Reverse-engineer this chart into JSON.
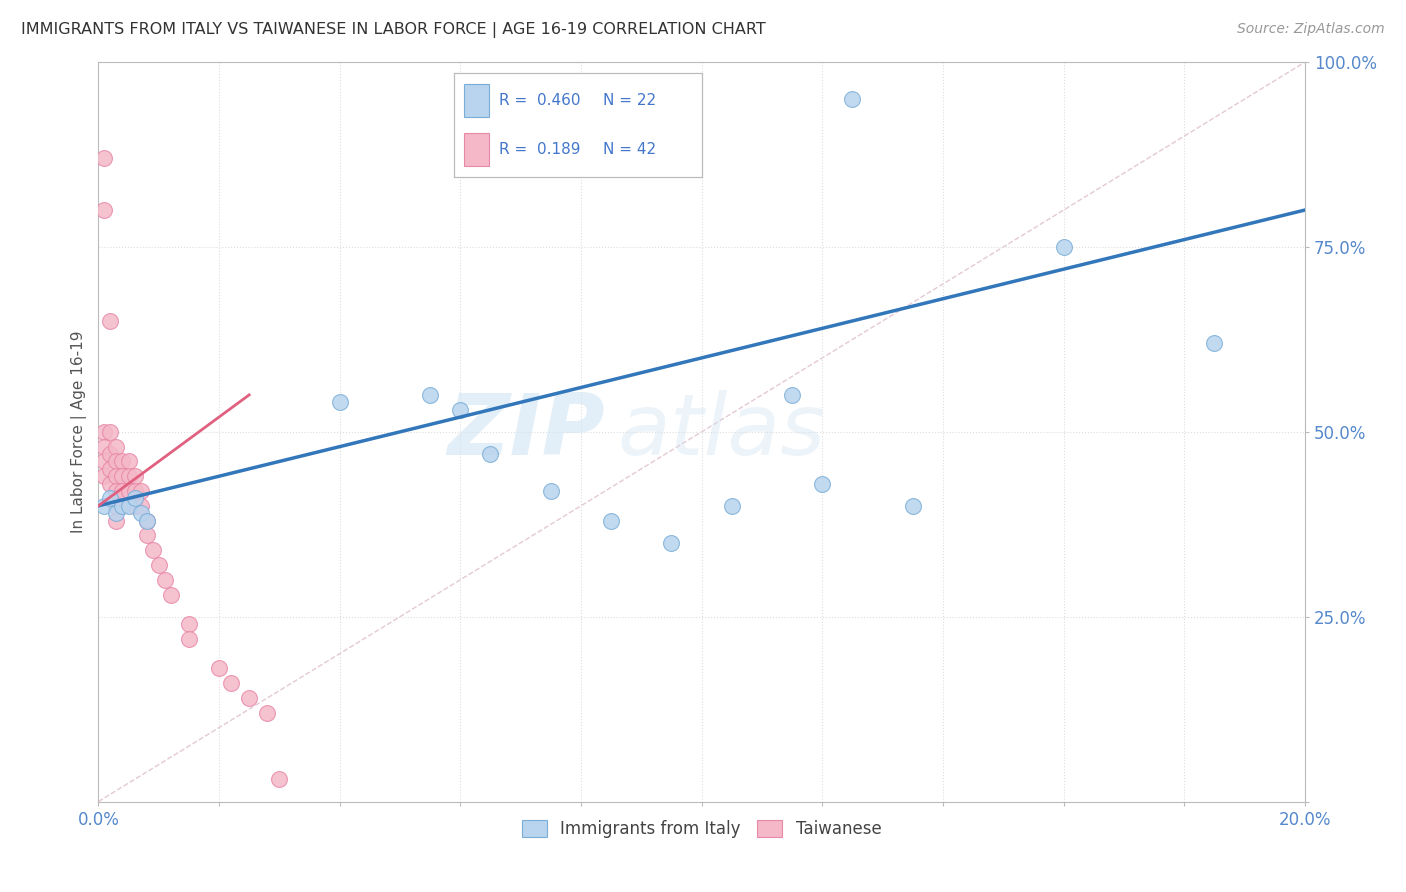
{
  "title": "IMMIGRANTS FROM ITALY VS TAIWANESE IN LABOR FORCE | AGE 16-19 CORRELATION CHART",
  "source": "Source: ZipAtlas.com",
  "ylabel_label": "In Labor Force | Age 16-19",
  "xlim": [
    0.0,
    0.2
  ],
  "ylim": [
    0.0,
    1.0
  ],
  "xticks": [
    0.0,
    0.02,
    0.04,
    0.06,
    0.08,
    0.1,
    0.12,
    0.14,
    0.16,
    0.18,
    0.2
  ],
  "yticks": [
    0.0,
    0.25,
    0.5,
    0.75,
    1.0
  ],
  "italy_color": "#b8d4ee",
  "taiwan_color": "#f4b8c8",
  "italy_edge_color": "#7aaed8",
  "taiwan_edge_color": "#e888a8",
  "trend_italy_color": "#3377bb",
  "trend_taiwan_color": "#e06080",
  "diag_color": "#cccccc",
  "r_italy": 0.46,
  "n_italy": 22,
  "r_taiwan": 0.189,
  "n_taiwan": 42,
  "italy_x": [
    0.001,
    0.002,
    0.003,
    0.004,
    0.005,
    0.006,
    0.007,
    0.008,
    0.04,
    0.055,
    0.06,
    0.065,
    0.075,
    0.085,
    0.095,
    0.105,
    0.115,
    0.125,
    0.135,
    0.16,
    0.185,
    0.12
  ],
  "italy_y": [
    0.4,
    0.41,
    0.39,
    0.4,
    0.4,
    0.41,
    0.39,
    0.38,
    0.54,
    0.55,
    0.53,
    0.47,
    0.42,
    0.38,
    0.35,
    0.4,
    0.55,
    0.95,
    0.4,
    0.75,
    0.62,
    0.43
  ],
  "taiwan_x": [
    0.001,
    0.001,
    0.001,
    0.001,
    0.001,
    0.001,
    0.002,
    0.002,
    0.002,
    0.002,
    0.002,
    0.003,
    0.003,
    0.003,
    0.003,
    0.003,
    0.003,
    0.004,
    0.004,
    0.004,
    0.004,
    0.005,
    0.005,
    0.005,
    0.006,
    0.006,
    0.006,
    0.007,
    0.007,
    0.008,
    0.008,
    0.009,
    0.01,
    0.011,
    0.012,
    0.015,
    0.015,
    0.02,
    0.022,
    0.025,
    0.028,
    0.03
  ],
  "taiwan_y": [
    0.87,
    0.8,
    0.5,
    0.48,
    0.46,
    0.44,
    0.65,
    0.5,
    0.47,
    0.45,
    0.43,
    0.48,
    0.46,
    0.44,
    0.42,
    0.4,
    0.38,
    0.46,
    0.44,
    0.42,
    0.4,
    0.46,
    0.44,
    0.42,
    0.44,
    0.42,
    0.4,
    0.42,
    0.4,
    0.38,
    0.36,
    0.34,
    0.32,
    0.3,
    0.28,
    0.24,
    0.22,
    0.18,
    0.16,
    0.14,
    0.12,
    0.03
  ],
  "watermark_zip": "ZIP",
  "watermark_atlas": "atlas",
  "marker_size": 130,
  "background_color": "#ffffff",
  "grid_color": "#dddddd",
  "axis_color": "#bbbbbb",
  "title_color": "#333333",
  "tick_color": "#5588cc",
  "legend_r_color": "#4477cc",
  "legend_box_color": "#cccccc"
}
